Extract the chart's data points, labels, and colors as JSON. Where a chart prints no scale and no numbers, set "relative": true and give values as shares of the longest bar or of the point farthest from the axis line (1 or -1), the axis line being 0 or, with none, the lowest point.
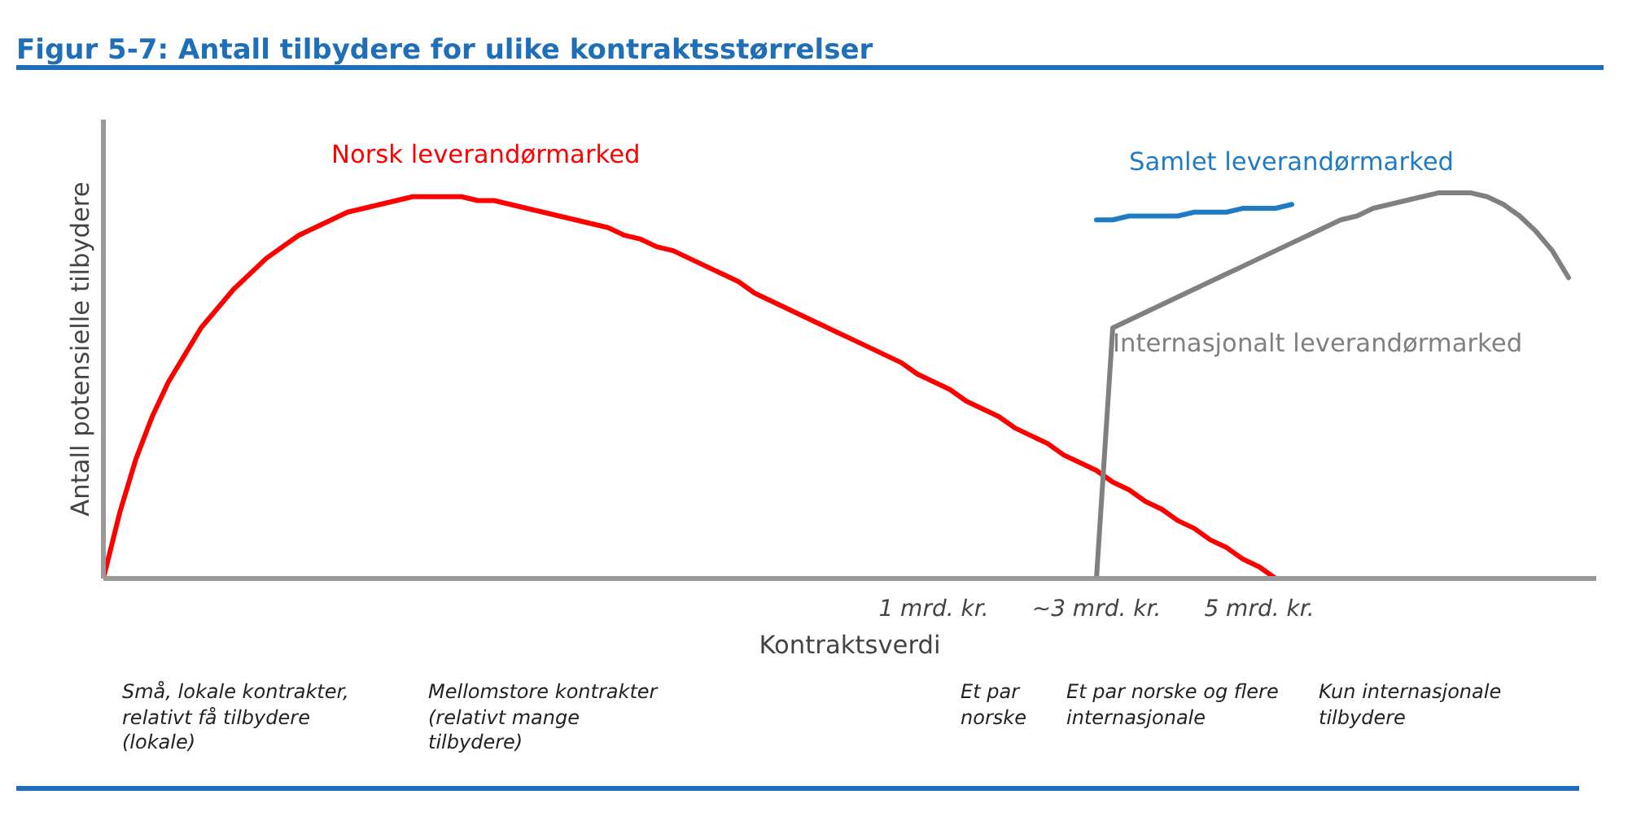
{
  "chart_data": {
    "type": "line",
    "relative": true,
    "legend": false,
    "grid": false,
    "title": "Figur 5-7: Antall tilbydere for ulike kontraktsstørrelser",
    "xlabel": "Kontraktsverdi",
    "ylabel": "Antall potensielle tilbydere",
    "categories": [
      null,
      null,
      null,
      null,
      null,
      null,
      null,
      null,
      null,
      null,
      null,
      null,
      null,
      null,
      null,
      null,
      null,
      null,
      null,
      null,
      null,
      null,
      null,
      null,
      null,
      null,
      null,
      null,
      null,
      null,
      null,
      null,
      null,
      null,
      null,
      null,
      null,
      null,
      null,
      null,
      null,
      null,
      null,
      null,
      null,
      null,
      null,
      null,
      null,
      null,
      null,
      "1 mrd. kr.",
      null,
      null,
      null,
      null,
      null,
      null,
      null,
      null,
      null,
      "~3 mrd. kr.",
      null,
      null,
      null,
      null,
      null,
      null,
      null,
      null,
      null,
      "5 mrd. kr.",
      null,
      null,
      null,
      null,
      null,
      null,
      null,
      null,
      null,
      null,
      null,
      null,
      null,
      null,
      null,
      null,
      null,
      null,
      null
    ],
    "series": [
      {
        "name": "Norsk leverandørmarked",
        "color": "#ff0000",
        "values": [
          0,
          0.17,
          0.31,
          0.42,
          0.51,
          0.58,
          0.65,
          0.7,
          0.75,
          0.79,
          0.83,
          0.86,
          0.89,
          0.91,
          0.93,
          0.95,
          0.96,
          0.97,
          0.98,
          0.99,
          0.99,
          0.99,
          0.99,
          0.98,
          0.98,
          0.97,
          0.96,
          0.95,
          0.94,
          0.93,
          0.92,
          0.91,
          0.89,
          0.88,
          0.86,
          0.85,
          0.83,
          0.81,
          0.79,
          0.77,
          0.74,
          0.72,
          0.7,
          0.68,
          0.66,
          0.64,
          0.62,
          0.6,
          0.58,
          0.56,
          0.53,
          0.51,
          0.49,
          0.46,
          0.44,
          0.42,
          0.39,
          0.37,
          0.35,
          0.32,
          0.3,
          0.28,
          0.25,
          0.23,
          0.2,
          0.18,
          0.15,
          0.13,
          0.1,
          0.08,
          0.05,
          0.03,
          0,
          null,
          null,
          null,
          null,
          null,
          null,
          null,
          null,
          null,
          null,
          null,
          null,
          null,
          null,
          null,
          null,
          null,
          null
        ]
      },
      {
        "name": "Samlet leverandørmarked",
        "color": "#1f7bc4",
        "values": [
          null,
          null,
          null,
          null,
          null,
          null,
          null,
          null,
          null,
          null,
          null,
          null,
          null,
          null,
          null,
          null,
          null,
          null,
          null,
          null,
          null,
          null,
          null,
          null,
          null,
          null,
          null,
          null,
          null,
          null,
          null,
          null,
          null,
          null,
          null,
          null,
          null,
          null,
          null,
          null,
          null,
          null,
          null,
          null,
          null,
          null,
          null,
          null,
          null,
          null,
          null,
          null,
          null,
          null,
          null,
          null,
          null,
          null,
          null,
          null,
          null,
          0.93,
          0.93,
          0.94,
          0.94,
          0.94,
          0.94,
          0.95,
          0.95,
          0.95,
          0.96,
          0.96,
          0.96,
          0.97,
          null,
          null,
          null,
          null,
          null,
          null,
          null,
          null,
          null,
          null,
          null,
          null,
          null,
          null,
          null,
          null,
          null
        ]
      },
      {
        "name": "Internasjonalt leverandørmarked",
        "color": "#808080",
        "values": [
          null,
          null,
          null,
          null,
          null,
          null,
          null,
          null,
          null,
          null,
          null,
          null,
          null,
          null,
          null,
          null,
          null,
          null,
          null,
          null,
          null,
          null,
          null,
          null,
          null,
          null,
          null,
          null,
          null,
          null,
          null,
          null,
          null,
          null,
          null,
          null,
          null,
          null,
          null,
          null,
          null,
          null,
          null,
          null,
          null,
          null,
          null,
          null,
          null,
          null,
          null,
          null,
          null,
          null,
          null,
          null,
          null,
          null,
          null,
          null,
          null,
          0,
          0.65,
          0.67,
          0.69,
          0.71,
          0.73,
          0.75,
          0.77,
          0.79,
          0.81,
          0.83,
          0.85,
          0.87,
          0.89,
          0.91,
          0.93,
          0.94,
          0.96,
          0.97,
          0.98,
          0.99,
          1.0,
          1.0,
          1.0,
          0.99,
          0.97,
          0.94,
          0.9,
          0.85,
          0.78
        ]
      }
    ],
    "annotations": [
      "Små, lokale kontrakter, relativt få tilbydere (lokale)",
      "Mellomstore kontrakter (relativt mange tilbydere)",
      "Et par norske",
      "Et par norske og flere internasjonale",
      "Kun internasjonale tilbydere"
    ]
  }
}
